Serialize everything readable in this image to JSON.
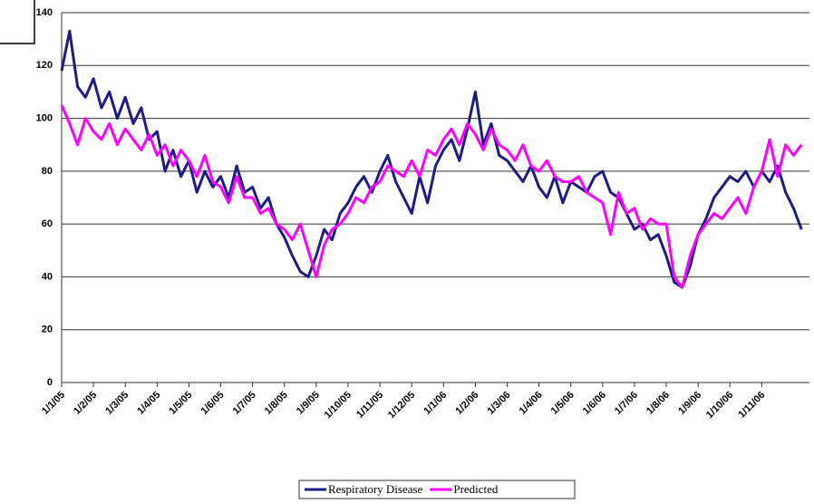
{
  "chart_data": {
    "type": "line",
    "categories": [
      "1/1/05",
      null,
      null,
      null,
      "1/2/05",
      null,
      null,
      null,
      "1/3/05",
      null,
      null,
      null,
      "1/4/05",
      null,
      null,
      null,
      "1/5/05",
      null,
      null,
      null,
      "1/6/05",
      null,
      null,
      null,
      "1/7/05",
      null,
      null,
      null,
      "1/8/05",
      null,
      null,
      null,
      "1/9/05",
      null,
      null,
      null,
      "1/10/05",
      null,
      null,
      null,
      "1/11/05",
      null,
      null,
      null,
      "1/12/05",
      null,
      null,
      null,
      "1/1/06",
      null,
      null,
      null,
      "1/2/06",
      null,
      null,
      null,
      "1/3/06",
      null,
      null,
      null,
      "1/4/06",
      null,
      null,
      null,
      "1/5/06",
      null,
      null,
      null,
      "1/6/06",
      null,
      null,
      null,
      "1/7/06",
      null,
      null,
      null,
      "1/8/06",
      null,
      null,
      null,
      "1/9/06",
      null,
      null,
      null,
      "1/10/06",
      null,
      null,
      null,
      "1/11/06",
      null,
      null,
      null,
      null,
      null
    ],
    "series": [
      {
        "name": "Respiratory Disease",
        "color": "#1c1c82",
        "values": [
          118,
          133,
          112,
          108,
          115,
          104,
          110,
          100,
          108,
          98,
          104,
          92,
          95,
          80,
          88,
          78,
          84,
          72,
          80,
          74,
          78,
          70,
          82,
          72,
          74,
          66,
          70,
          60,
          55,
          48,
          42,
          40,
          48,
          58,
          54,
          64,
          68,
          74,
          78,
          72,
          80,
          86,
          76,
          70,
          64,
          78,
          68,
          82,
          88,
          92,
          84,
          96,
          110,
          90,
          98,
          86,
          84,
          80,
          76,
          82,
          74,
          70,
          78,
          68,
          76,
          74,
          72,
          78,
          80,
          72,
          70,
          64,
          58,
          60,
          54,
          56,
          48,
          38,
          36,
          44,
          56,
          62,
          70,
          74,
          78,
          76,
          80,
          74,
          80,
          76,
          82,
          72,
          66,
          58
        ]
      },
      {
        "name": "Predicted",
        "color": "#ff00ff",
        "values": [
          105,
          98,
          90,
          100,
          95,
          92,
          98,
          90,
          96,
          92,
          88,
          94,
          86,
          90,
          82,
          88,
          84,
          78,
          86,
          76,
          74,
          68,
          78,
          70,
          70,
          64,
          66,
          60,
          58,
          54,
          60,
          50,
          40,
          52,
          58,
          60,
          64,
          70,
          68,
          74,
          76,
          82,
          80,
          78,
          84,
          78,
          88,
          86,
          92,
          96,
          90,
          98,
          94,
          88,
          96,
          90,
          88,
          84,
          90,
          82,
          80,
          84,
          78,
          76,
          76,
          78,
          72,
          70,
          68,
          56,
          72,
          64,
          66,
          58,
          62,
          60,
          60,
          40,
          36,
          48,
          56,
          60,
          64,
          62,
          66,
          70,
          64,
          74,
          80,
          92,
          78,
          90,
          86,
          90
        ]
      }
    ],
    "ylim": [
      0,
      140
    ],
    "yticks": [
      0,
      20,
      40,
      60,
      80,
      100,
      120,
      140
    ],
    "grid": true,
    "legend": "bottom"
  }
}
